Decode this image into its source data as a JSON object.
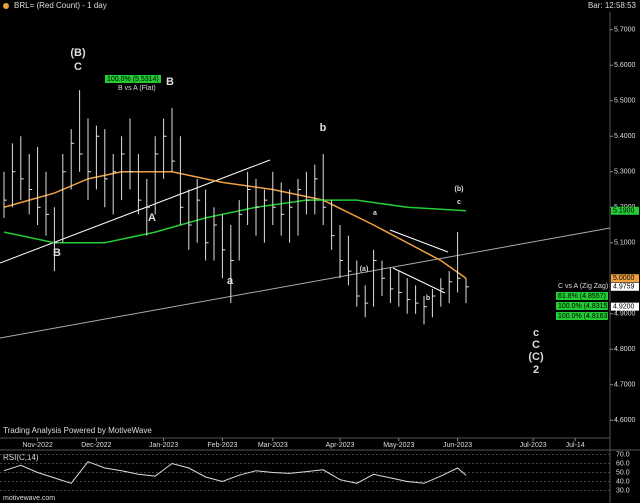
{
  "header": {
    "title": "BRL= (Red Count) - 1 day",
    "bar_time": "Bar: 12:58:53"
  },
  "footer": {
    "credit": "Trading Analysis Powered by MotiveWave",
    "site": "motivewave.com"
  },
  "chart_data": {
    "type": "ohlc",
    "bar_color": "#e0e0e0",
    "categories": [
      null,
      null,
      null,
      null,
      null,
      null,
      null,
      null,
      null,
      null,
      null,
      null,
      null,
      null,
      null,
      null,
      null,
      null,
      null,
      null,
      null,
      null,
      null,
      null,
      null,
      null,
      null,
      null,
      null,
      null,
      null,
      null,
      null,
      null,
      null,
      null,
      null,
      null,
      null,
      null,
      null,
      null,
      null,
      null,
      null,
      null,
      null,
      null,
      null,
      null,
      null,
      null,
      null,
      null,
      null,
      null
    ],
    "high": [
      5.3,
      5.38,
      5.4,
      5.35,
      5.37,
      5.3,
      5.2,
      5.35,
      5.42,
      5.53,
      5.45,
      5.43,
      5.42,
      5.35,
      5.4,
      5.45,
      5.35,
      5.28,
      5.4,
      5.45,
      5.48,
      5.4,
      5.25,
      5.28,
      5.25,
      5.2,
      5.18,
      5.15,
      5.22,
      5.3,
      5.28,
      5.25,
      5.3,
      5.27,
      5.25,
      5.28,
      5.3,
      5.32,
      5.35,
      5.22,
      5.15,
      5.12,
      5.05,
      4.98,
      5.08,
      5.05,
      5.03,
      5.02,
      5.0,
      4.98,
      4.95,
      4.97,
      5.0,
      5.02,
      5.13,
      5.0
    ],
    "low": [
      5.17,
      5.2,
      5.22,
      5.18,
      5.15,
      5.12,
      5.02,
      5.1,
      5.25,
      5.3,
      5.22,
      5.25,
      5.2,
      5.18,
      5.22,
      5.25,
      5.18,
      5.12,
      5.18,
      5.28,
      5.3,
      5.15,
      5.08,
      5.1,
      5.05,
      5.05,
      5.0,
      4.93,
      5.05,
      5.15,
      5.12,
      5.1,
      5.15,
      5.12,
      5.1,
      5.12,
      5.18,
      5.18,
      5.15,
      5.08,
      5.0,
      4.98,
      4.92,
      4.89,
      4.92,
      4.95,
      4.93,
      4.92,
      4.9,
      4.9,
      4.87,
      4.89,
      4.92,
      4.93,
      4.96,
      4.93
    ],
    "close": [
      5.22,
      5.3,
      5.28,
      5.25,
      5.2,
      5.18,
      5.1,
      5.3,
      5.38,
      5.35,
      5.3,
      5.4,
      5.28,
      5.3,
      5.35,
      5.3,
      5.22,
      5.2,
      5.35,
      5.4,
      5.33,
      5.2,
      5.15,
      5.22,
      5.1,
      5.15,
      5.08,
      5.05,
      5.18,
      5.25,
      5.2,
      5.22,
      5.2,
      5.18,
      5.2,
      5.25,
      5.22,
      5.28,
      5.2,
      5.12,
      5.05,
      5.02,
      4.95,
      4.93,
      5.05,
      5.0,
      4.97,
      4.96,
      4.94,
      4.93,
      4.92,
      4.95,
      4.97,
      4.99,
      5.0,
      4.9759
    ],
    "averages": [
      {
        "color": "#f0a040",
        "x": [
          0,
          6,
          10,
          14,
          20,
          26,
          32,
          38,
          44,
          48,
          52,
          55
        ],
        "values": [
          5.2,
          5.24,
          5.28,
          5.3,
          5.3,
          5.27,
          5.25,
          5.22,
          5.15,
          5.1,
          5.05,
          5.0
        ]
      },
      {
        "color": "#22cc33",
        "x": [
          0,
          6,
          12,
          18,
          24,
          30,
          36,
          42,
          48,
          55
        ],
        "values": [
          5.13,
          5.1,
          5.1,
          5.13,
          5.17,
          5.2,
          5.22,
          5.22,
          5.2,
          5.19
        ]
      }
    ],
    "ylim": [
      4.55,
      5.75
    ],
    "yticks": [
      {
        "value": 5.7,
        "label": "5.7000"
      },
      {
        "value": 5.6,
        "label": "5.6000"
      },
      {
        "value": 5.5,
        "label": "5.5000"
      },
      {
        "value": 5.4,
        "label": "5.4000"
      },
      {
        "value": 5.3,
        "label": "5.3000"
      },
      {
        "value": 5.2,
        "label": "5.2000"
      },
      {
        "value": 5.1,
        "label": "5.1000"
      },
      {
        "value": 4.9,
        "label": "4.9000"
      },
      {
        "value": 4.8,
        "label": "4.8000"
      },
      {
        "value": 4.7,
        "label": "4.7000"
      },
      {
        "value": 4.6,
        "label": "4.6000"
      }
    ],
    "xticks": [
      {
        "value": 4,
        "label": "Nov-2022"
      },
      {
        "value": 11,
        "label": "Dec-2022"
      },
      {
        "value": 19,
        "label": "Jan-2023"
      },
      {
        "value": 26,
        "label": "Feb-2023"
      },
      {
        "value": 32,
        "label": "Mar-2023"
      },
      {
        "value": 40,
        "label": "Apr-2023"
      },
      {
        "value": 47,
        "label": "May-2023"
      },
      {
        "value": 54,
        "label": "Jun-2023"
      },
      {
        "value": 63,
        "label": "Jul-2023"
      },
      {
        "value": 68,
        "label": "Jul-14"
      }
    ],
    "price_tags": [
      {
        "value": 5.19,
        "label": "5.1900",
        "color": "#22cc33"
      },
      {
        "value": 5.0,
        "label": "5.0000",
        "color": "#f0a040"
      },
      {
        "value": 4.9759,
        "label": "4.9759",
        "color": "#ffffff"
      },
      {
        "value": 4.92,
        "label": "4.9200",
        "color": "#ffffff"
      }
    ],
    "annotations": [
      {
        "text": "(B)",
        "color": "#33bbbb"
      },
      {
        "text": "C",
        "color": "#22cc33"
      },
      {
        "text": "B",
        "color": "#22cc33"
      },
      {
        "text": "b",
        "color": "#f0a040"
      },
      {
        "text": "A",
        "color": "#22cc33"
      },
      {
        "text": "B",
        "color": "#22cc33"
      },
      {
        "text": "a",
        "color": "#f0a040"
      },
      {
        "text": "(a)",
        "color": "#33bbbb"
      },
      {
        "text": "a",
        "color": "#22cc33"
      },
      {
        "text": "(b)",
        "color": "#33bbbb"
      },
      {
        "text": "c",
        "color": "#22cc33"
      },
      {
        "text": "b",
        "color": "#22cc33"
      },
      {
        "text": "c",
        "color": "#f0a040"
      },
      {
        "text": "C",
        "color": "#22cc33"
      },
      {
        "text": "(C)",
        "color": "#33bbbb"
      },
      {
        "text": "2",
        "color": "#f0a040"
      }
    ],
    "fib_b": {
      "title": "B vs A (Flat)",
      "levels": [
        "100.0% (5.5314)"
      ]
    },
    "fib_c": {
      "title": "C vs A (Zig Zag)",
      "levels": [
        "61.8% (4.8557)",
        "100.0% (4.8315)",
        "100.0% (4.8163)"
      ]
    },
    "rsi": {
      "title": "RSI(C,14)",
      "color": "#dddddd",
      "ylim": [
        25,
        75
      ],
      "yticks": [
        {
          "value": 70,
          "label": "70.0"
        },
        {
          "value": 60,
          "label": "60.0"
        },
        {
          "value": 50,
          "label": "50.0"
        },
        {
          "value": 40,
          "label": "40.0"
        },
        {
          "value": 30,
          "label": "30.0"
        }
      ],
      "x": [
        0,
        2,
        4,
        6,
        8,
        10,
        12,
        14,
        16,
        18,
        20,
        22,
        24,
        26,
        28,
        30,
        32,
        34,
        36,
        38,
        40,
        42,
        44,
        46,
        48,
        50,
        52,
        54,
        55
      ],
      "values": [
        52,
        58,
        50,
        44,
        38,
        62,
        55,
        52,
        48,
        46,
        60,
        55,
        45,
        40,
        47,
        52,
        50,
        49,
        51,
        53,
        42,
        38,
        48,
        44,
        40,
        38,
        46,
        55,
        47
      ]
    }
  }
}
